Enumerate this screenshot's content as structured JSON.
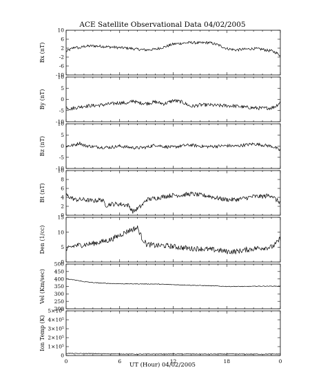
{
  "chart_data": {
    "type": "line",
    "title": "ACE Satellite Observational Data   04/02/2005",
    "xlabel": "UT (Hour)   04/02/2005",
    "xlim": [
      0,
      24
    ],
    "x_tick_labels": [
      "0",
      "6",
      "12",
      "18",
      "0"
    ],
    "panels": [
      {
        "ylabel": "Bx (nT)",
        "ylim": [
          -10,
          10
        ],
        "y_ticks": [
          {
            "value": -10,
            "label": "-10"
          },
          {
            "value": -6,
            "label": "-6"
          },
          {
            "value": -2,
            "label": "-2"
          },
          {
            "value": 2,
            "label": "2"
          },
          {
            "value": 6,
            "label": "6"
          },
          {
            "value": 10,
            "label": "10"
          }
        ],
        "series": [
          {
            "x": [
              0,
              0.5,
              1,
              1.5,
              2,
              3,
              4,
              5,
              6,
              7,
              8,
              9,
              10,
              11,
              12,
              13,
              14,
              15,
              16,
              17,
              18,
              19,
              20,
              21,
              22,
              22.5,
              23,
              23.5,
              24
            ],
            "y": [
              0.5,
              1.5,
              2.5,
              2,
              2.8,
              3,
              2.8,
              2.5,
              2.2,
              2,
              1.5,
              1.2,
              1.5,
              2.5,
              3.8,
              4.2,
              4.5,
              4.3,
              4.5,
              3.5,
              1.8,
              1.2,
              1.5,
              1.8,
              1.5,
              1.0,
              0.8,
              0,
              -1.2
            ],
            "noise": 0.6
          }
        ]
      },
      {
        "ylabel": "By (nT)",
        "ylim": [
          -10,
          10
        ],
        "y_ticks": [
          {
            "value": -10,
            "label": "-10"
          },
          {
            "value": -5,
            "label": "-5"
          },
          {
            "value": 0,
            "label": "0"
          },
          {
            "value": 5,
            "label": "5"
          },
          {
            "value": 10,
            "label": "10"
          }
        ],
        "series": [
          {
            "x": [
              0,
              0.5,
              1,
              2,
              3,
              4,
              5,
              6,
              7,
              7.5,
              8,
              9,
              10,
              11,
              12,
              13,
              14,
              15,
              16,
              17,
              18,
              19,
              20,
              21,
              22,
              23,
              23.5,
              24
            ],
            "y": [
              -3.5,
              -4.2,
              -3.8,
              -3,
              -2.8,
              -2.5,
              -2,
              -1.5,
              -1.8,
              -0.5,
              -1.5,
              -1.8,
              -1.2,
              -2,
              -0.5,
              -1.2,
              -3.2,
              -2.5,
              -2.5,
              -2.8,
              -2.8,
              -3,
              -3.5,
              -3.8,
              -4,
              -3.8,
              -3,
              -1.2
            ],
            "noise": 0.8
          }
        ]
      },
      {
        "ylabel": "Bz (nT)",
        "ylim": [
          -10,
          10
        ],
        "y_ticks": [
          {
            "value": -10,
            "label": "-10"
          },
          {
            "value": -5,
            "label": "-5"
          },
          {
            "value": 0,
            "label": "0"
          },
          {
            "value": 5,
            "label": "5"
          },
          {
            "value": 10,
            "label": "10"
          }
        ],
        "series": [
          {
            "x": [
              0,
              1,
              1.5,
              2,
              3,
              4,
              5,
              6,
              7,
              8,
              9,
              10,
              11,
              12,
              13,
              14,
              15,
              16,
              17,
              18,
              19,
              20,
              21,
              22,
              23,
              23.5,
              24
            ],
            "y": [
              0,
              0.5,
              1.5,
              0.3,
              -0.2,
              -0.5,
              -0.5,
              0,
              -0.5,
              -0.8,
              -0.5,
              0.5,
              -0.2,
              -0.5,
              0.2,
              0.5,
              0,
              -0.2,
              0,
              0.2,
              0,
              0.5,
              1,
              0.5,
              0,
              -0.8,
              -2
            ],
            "noise": 0.7
          }
        ]
      },
      {
        "ylabel": "Bt (nT)",
        "ylim": [
          0,
          10
        ],
        "y_ticks": [
          {
            "value": 0,
            "label": "0"
          },
          {
            "value": 2,
            "label": "2"
          },
          {
            "value": 4,
            "label": "4"
          },
          {
            "value": 6,
            "label": "6"
          },
          {
            "value": 8,
            "label": "8"
          },
          {
            "value": 10,
            "label": "10"
          }
        ],
        "series": [
          {
            "x": [
              0,
              0.5,
              1,
              2,
              3,
              4,
              4.5,
              5,
              6,
              7,
              7.5,
              8,
              8.5,
              9,
              10,
              11,
              12,
              13,
              14,
              15,
              16,
              17,
              18,
              19,
              20,
              21,
              22,
              23,
              23.5,
              24
            ],
            "y": [
              4.5,
              4,
              3.5,
              3.5,
              3.2,
              3.5,
              2.2,
              2.5,
              2.5,
              2.2,
              0.8,
              1.5,
              2.2,
              3.5,
              3.8,
              4.2,
              4.5,
              4.5,
              4.8,
              4.5,
              4.3,
              3.8,
              3.5,
              3.5,
              3.8,
              4.2,
              4.2,
              4.5,
              3.5,
              2.8
            ],
            "noise": 0.5
          }
        ]
      },
      {
        "ylabel": "Den (1/cc)",
        "ylim": [
          0,
          15
        ],
        "y_ticks": [
          {
            "value": 0,
            "label": "0"
          },
          {
            "value": 5,
            "label": "5"
          },
          {
            "value": 10,
            "label": "10"
          },
          {
            "value": 15,
            "label": "15"
          }
        ],
        "series": [
          {
            "x": [
              0,
              0.5,
              1,
              2,
              3,
              4,
              5,
              6,
              7,
              7.5,
              8,
              8.5,
              9,
              10,
              11,
              12,
              13,
              14,
              15,
              16,
              17,
              18,
              19,
              20,
              21,
              22,
              23,
              23.5,
              24
            ],
            "y": [
              4,
              5,
              5.5,
              5.8,
              6.2,
              6.8,
              7.5,
              9,
              10.5,
              11,
              11.5,
              8,
              6,
              5.5,
              5.5,
              5.2,
              4.8,
              4.5,
              4.5,
              4.2,
              4,
              3.5,
              3.5,
              4,
              4.5,
              4.8,
              5,
              6,
              8
            ],
            "noise": 0.9
          }
        ]
      },
      {
        "ylabel": "Vel (Km/sec)",
        "ylim": [
          200,
          500
        ],
        "y_ticks": [
          {
            "value": 200,
            "label": "200"
          },
          {
            "value": 250,
            "label": "250"
          },
          {
            "value": 300,
            "label": "300"
          },
          {
            "value": 350,
            "label": "350"
          },
          {
            "value": 400,
            "label": "400"
          },
          {
            "value": 450,
            "label": "450"
          },
          {
            "value": 500,
            "label": "500"
          }
        ],
        "series": [
          {
            "x": [
              0,
              1,
              2,
              3,
              4,
              6,
              8,
              10,
              12,
              14,
              16,
              18,
              20,
              22,
              24
            ],
            "y": [
              400,
              393,
              382,
              376,
              372,
              368,
              367,
              366,
              362,
              358,
              355,
              350,
              350,
              352,
              352
            ],
            "noise": 2
          }
        ]
      },
      {
        "ylabel": "Ion Temp (K)",
        "ylim": [
          0,
          500000
        ],
        "y_ticks": [
          {
            "value": 0,
            "label": "0"
          },
          {
            "value": 100000,
            "label": "1×10⁵"
          },
          {
            "value": 200000,
            "label": "2×10⁵"
          },
          {
            "value": 300000,
            "label": "3×10⁵"
          },
          {
            "value": 400000,
            "label": "4×10⁵"
          },
          {
            "value": 500000,
            "label": "5×10⁵"
          }
        ],
        "series": [
          {
            "x": [
              0,
              1,
              2,
              4,
              6,
              8,
              10,
              12,
              14,
              16,
              18,
              20,
              22,
              24
            ],
            "y": [
              25000,
              22000,
              22000,
              20000,
              18000,
              15000,
              17000,
              18000,
              17000,
              16000,
              17000,
              16000,
              16000,
              17000
            ],
            "noise": 4000
          }
        ]
      }
    ]
  }
}
